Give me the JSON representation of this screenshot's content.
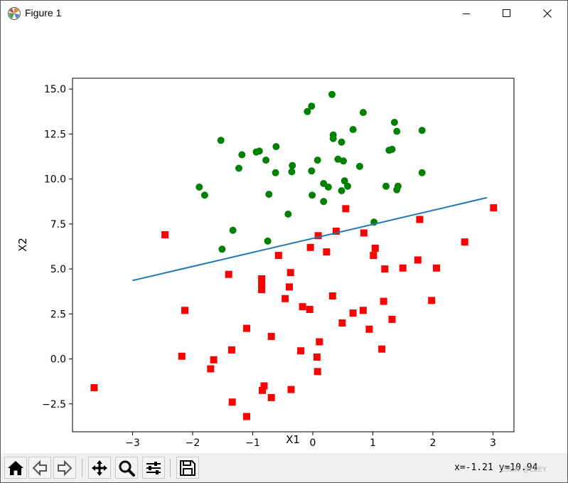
{
  "window": {
    "title": "Figure 1",
    "icon": "matplotlib-logo-icon",
    "controls": [
      "minimize-icon",
      "maximize-icon",
      "close-icon"
    ]
  },
  "chart_data": {
    "type": "scatter",
    "title": "",
    "xlabel": "X1",
    "ylabel": "X2",
    "xlim": [
      -4,
      3.35
    ],
    "ylim": [
      -4.05,
      15.6
    ],
    "xticks": [
      -3,
      -2,
      -1,
      0,
      1,
      2,
      3
    ],
    "xtick_labels": [
      "−3",
      "−2",
      "−1",
      "0",
      "1",
      "2",
      "3"
    ],
    "yticks": [
      -2.5,
      0.0,
      2.5,
      5.0,
      7.5,
      10.0,
      12.5,
      15.0
    ],
    "ytick_labels": [
      "−2.5",
      "0.0",
      "2.5",
      "5.0",
      "7.5",
      "10.0",
      "12.5",
      "15.0"
    ],
    "grid": false,
    "legend": "none",
    "series": [
      {
        "marker": "circle",
        "color": "#008000",
        "points": [
          [
            0.32,
            14.7
          ],
          [
            -0.02,
            14.05
          ],
          [
            -0.09,
            13.75
          ],
          [
            0.84,
            13.7
          ],
          [
            1.36,
            13.15
          ],
          [
            1.4,
            12.65
          ],
          [
            1.82,
            12.7
          ],
          [
            0.67,
            12.75
          ],
          [
            0.34,
            12.45
          ],
          [
            0.34,
            12.25
          ],
          [
            -1.53,
            12.15
          ],
          [
            0.48,
            12.05
          ],
          [
            -0.61,
            11.8
          ],
          [
            -0.94,
            11.5
          ],
          [
            -0.89,
            11.55
          ],
          [
            1.27,
            11.6
          ],
          [
            1.32,
            11.65
          ],
          [
            -1.18,
            11.35
          ],
          [
            -0.78,
            11.05
          ],
          [
            0.08,
            11.05
          ],
          [
            0.42,
            11.1
          ],
          [
            0.51,
            11.0
          ],
          [
            0.78,
            10.7
          ],
          [
            -0.34,
            10.75
          ],
          [
            -1.23,
            10.6
          ],
          [
            -0.35,
            10.4
          ],
          [
            -0.62,
            10.35
          ],
          [
            -0.02,
            10.45
          ],
          [
            1.82,
            10.35
          ],
          [
            0.53,
            9.9
          ],
          [
            0.18,
            9.75
          ],
          [
            0.26,
            9.55
          ],
          [
            -1.89,
            9.55
          ],
          [
            0.58,
            9.6
          ],
          [
            1.22,
            9.6
          ],
          [
            1.42,
            9.6
          ],
          [
            1.4,
            9.4
          ],
          [
            0.48,
            9.35
          ],
          [
            -0.73,
            9.15
          ],
          [
            -1.8,
            9.1
          ],
          [
            -0.01,
            9.1
          ],
          [
            0.18,
            8.75
          ],
          [
            -0.41,
            8.05
          ],
          [
            1.02,
            7.6
          ],
          [
            -1.33,
            7.15
          ],
          [
            -1.51,
            6.1
          ],
          [
            -0.75,
            6.55
          ]
        ]
      },
      {
        "marker": "square",
        "color": "#ff0000",
        "points": [
          [
            3.01,
            8.4
          ],
          [
            0.55,
            8.35
          ],
          [
            1.78,
            7.75
          ],
          [
            0.39,
            7.1
          ],
          [
            0.85,
            7.0
          ],
          [
            -2.46,
            6.9
          ],
          [
            0.09,
            6.85
          ],
          [
            2.53,
            6.5
          ],
          [
            -0.04,
            6.2
          ],
          [
            1.04,
            6.15
          ],
          [
            0.23,
            5.95
          ],
          [
            1.01,
            5.75
          ],
          [
            -0.57,
            5.75
          ],
          [
            1.75,
            5.5
          ],
          [
            1.2,
            5.0
          ],
          [
            1.5,
            5.05
          ],
          [
            2.06,
            5.05
          ],
          [
            -0.37,
            4.8
          ],
          [
            -1.4,
            4.7
          ],
          [
            -0.85,
            4.45
          ],
          [
            -0.85,
            4.2
          ],
          [
            -0.39,
            4.0
          ],
          [
            -0.85,
            3.85
          ],
          [
            0.33,
            3.5
          ],
          [
            -0.46,
            3.35
          ],
          [
            1.18,
            3.2
          ],
          [
            1.98,
            3.25
          ],
          [
            -0.17,
            2.9
          ],
          [
            -0.05,
            2.75
          ],
          [
            -2.13,
            2.7
          ],
          [
            0.67,
            2.55
          ],
          [
            0.84,
            2.7
          ],
          [
            1.32,
            2.2
          ],
          [
            0.49,
            2.0
          ],
          [
            -1.1,
            1.7
          ],
          [
            0.94,
            1.65
          ],
          [
            -0.69,
            1.25
          ],
          [
            0.11,
            0.95
          ],
          [
            -1.35,
            0.5
          ],
          [
            -0.2,
            0.45
          ],
          [
            1.15,
            0.55
          ],
          [
            -2.18,
            0.15
          ],
          [
            0.07,
            0.1
          ],
          [
            -1.65,
            -0.05
          ],
          [
            -1.7,
            -0.55
          ],
          [
            0.08,
            -0.7
          ],
          [
            -3.64,
            -1.6
          ],
          [
            -0.81,
            -1.5
          ],
          [
            -0.84,
            -1.75
          ],
          [
            -0.36,
            -1.7
          ],
          [
            -0.69,
            -2.15
          ],
          [
            -1.34,
            -2.4
          ],
          [
            -1.1,
            -3.2
          ]
        ]
      },
      {
        "marker": "line",
        "color": "#1f77b4",
        "points": [
          [
            -3.0,
            4.36
          ],
          [
            2.9,
            8.96
          ]
        ]
      }
    ]
  },
  "toolbar": {
    "buttons": [
      {
        "icon": "home-icon",
        "label": "Home"
      },
      {
        "icon": "back-arrow-icon",
        "label": "Back"
      },
      {
        "icon": "forward-arrow-icon",
        "label": "Forward"
      },
      {
        "icon": "pan-icon",
        "label": "Pan"
      },
      {
        "icon": "zoom-icon",
        "label": "Zoom"
      },
      {
        "icon": "configure-subplots-icon",
        "label": "Subplots"
      },
      {
        "icon": "save-icon",
        "label": "Save"
      }
    ],
    "coordinates": "x=-1.21 y=10.94",
    "watermark": "CSDN @LEEY."
  }
}
